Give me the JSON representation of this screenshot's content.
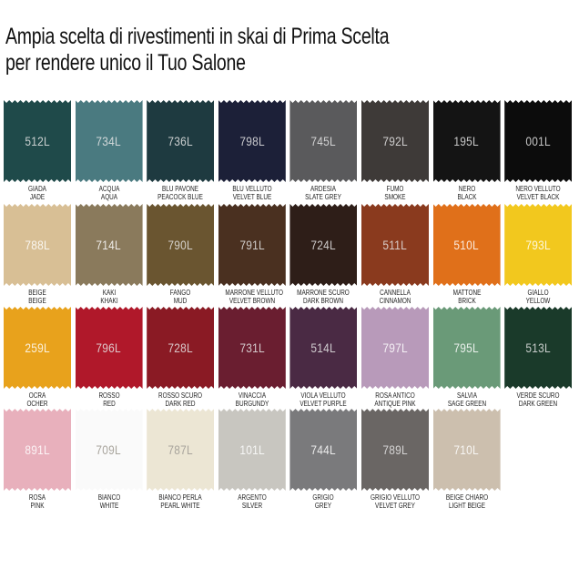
{
  "title": {
    "line1": "Ampia scelta di rivestimenti in skai di Prima Scelta",
    "line2": "per rendere unico il Tuo Salone"
  },
  "swatches": [
    {
      "code": "512L",
      "it": "GIADA",
      "en": "JADE",
      "color": "#1f4a4a"
    },
    {
      "code": "734L",
      "it": "ACQUA",
      "en": "AQUA",
      "color": "#4a7a80"
    },
    {
      "code": "736L",
      "it": "BLU PAVONE",
      "en": "PEACOCK BLUE",
      "color": "#1e3a40"
    },
    {
      "code": "798L",
      "it": "BLU VELLUTO",
      "en": "VELVET BLUE",
      "color": "#1c2038"
    },
    {
      "code": "745L",
      "it": "ARDESIA",
      "en": "SLATE GREY",
      "color": "#5a5a5c"
    },
    {
      "code": "792L",
      "it": "FUMO",
      "en": "SMOKE",
      "color": "#3e3a38"
    },
    {
      "code": "195L",
      "it": "NERO",
      "en": "BLACK",
      "color": "#141414"
    },
    {
      "code": "001L",
      "it": "NERO VELLUTO",
      "en": "VELVET BLACK",
      "color": "#0c0c0c"
    },
    {
      "code": "788L",
      "it": "BEIGE",
      "en": "BEIGE",
      "color": "#d8bf95"
    },
    {
      "code": "714L",
      "it": "KAKI",
      "en": "KHAKI",
      "color": "#8a7a5c"
    },
    {
      "code": "790L",
      "it": "FANGO",
      "en": "MUD",
      "color": "#6a5530"
    },
    {
      "code": "791L",
      "it": "MARRONE VELLUTO",
      "en": "VELVET BROWN",
      "color": "#4a3020"
    },
    {
      "code": "724L",
      "it": "MARRONE SCURO",
      "en": "DARK BROWN",
      "color": "#2e1e18"
    },
    {
      "code": "511L",
      "it": "CANNELLA",
      "en": "CINNAMON",
      "color": "#8a3a1e"
    },
    {
      "code": "510L",
      "it": "MATTONE",
      "en": "BRICK",
      "color": "#e0701a"
    },
    {
      "code": "793L",
      "it": "GIALLO",
      "en": "YELLOW",
      "color": "#f2c81e"
    },
    {
      "code": "259L",
      "it": "OCRA",
      "en": "OCHER",
      "color": "#e8a21c"
    },
    {
      "code": "796L",
      "it": "ROSSO",
      "en": "RED",
      "color": "#b0182a"
    },
    {
      "code": "728L",
      "it": "ROSSO SCURO",
      "en": "DARK RED",
      "color": "#8a1a24"
    },
    {
      "code": "731L",
      "it": "VINACCIA",
      "en": "BURGUNDY",
      "color": "#6a1e30"
    },
    {
      "code": "514L",
      "it": "VIOLA VELLUTO",
      "en": "VELVET PURPLE",
      "color": "#4a2a44"
    },
    {
      "code": "797L",
      "it": "ROSA ANTICO",
      "en": "ANTIQUE PINK",
      "color": "#b89aba"
    },
    {
      "code": "795L",
      "it": "SALVIA",
      "en": "SAGE GREEN",
      "color": "#6a9a78"
    },
    {
      "code": "513L",
      "it": "VERDE SCURO",
      "en": "DARK GREEN",
      "color": "#1a3a2a"
    },
    {
      "code": "891L",
      "it": "ROSA",
      "en": "PINK",
      "color": "#e8b0bc"
    },
    {
      "code": "709L",
      "it": "BIANCO",
      "en": "WHITE",
      "color": "#fafafa"
    },
    {
      "code": "787L",
      "it": "BIANCO PERLA",
      "en": "PEARL WHITE",
      "color": "#ece6d4"
    },
    {
      "code": "101L",
      "it": "ARGENTO",
      "en": "SILVER",
      "color": "#c8c6c0"
    },
    {
      "code": "744L",
      "it": "GRIGIO",
      "en": "GREY",
      "color": "#7a7a7c"
    },
    {
      "code": "789L",
      "it": "GRIGIO VELLUTO",
      "en": "VELVET GREY",
      "color": "#6a6664"
    },
    {
      "code": "710L",
      "it": "BEIGE CHIARO",
      "en": "LIGHT BEIGE",
      "color": "#ccbfae"
    }
  ]
}
